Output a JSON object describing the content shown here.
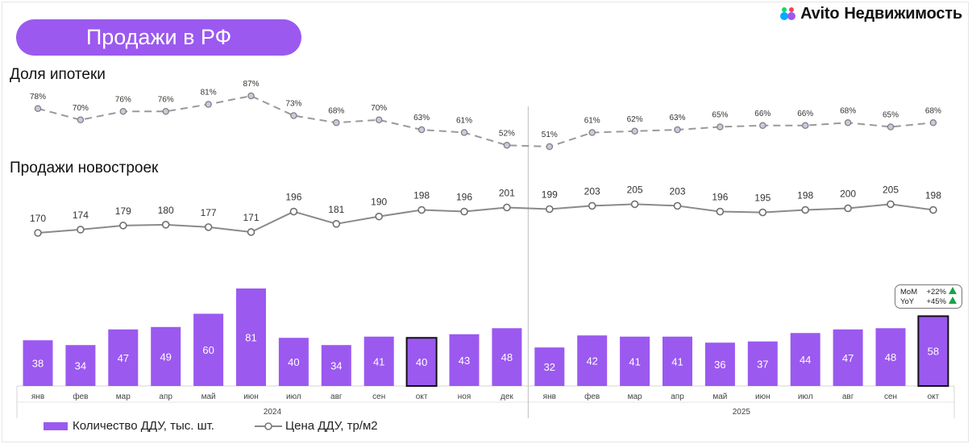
{
  "header": {
    "title": "Продажи в РФ",
    "brand_name": "Avito",
    "brand_sub": "Недвижимость"
  },
  "sections": {
    "mortgage": "Доля ипотеки",
    "sales": "Продажи новостроек"
  },
  "legend": {
    "bars": "Количество ДДУ, тыс. шт.",
    "line": "Цена ДДУ, тр/м2"
  },
  "badge": {
    "mom_label": "MoM",
    "mom_value": "+22%",
    "yoy_label": "YoY",
    "yoy_value": "+45%"
  },
  "colors": {
    "bar": "#9b59f0",
    "line": "#888888",
    "marker_fill": "#c7cbe0",
    "up": "#17a34a"
  },
  "chart_data": [
    {
      "type": "line",
      "title": "Доля ипотеки",
      "categories": [
        "янв",
        "фев",
        "мар",
        "апр",
        "май",
        "июн",
        "июл",
        "авг",
        "сен",
        "окт",
        "ноя",
        "дек",
        "янв",
        "фев",
        "мар",
        "апр",
        "май",
        "июн",
        "июл",
        "авг",
        "сен",
        "окт"
      ],
      "values": [
        78,
        70,
        76,
        76,
        81,
        87,
        73,
        68,
        70,
        63,
        61,
        52,
        51,
        61,
        62,
        63,
        65,
        66,
        66,
        68,
        65,
        68
      ],
      "value_suffix": "%",
      "style": "dashed"
    },
    {
      "type": "line",
      "title": "Цена ДДУ, тр/м2",
      "categories": [
        "янв",
        "фев",
        "мар",
        "апр",
        "май",
        "июн",
        "июл",
        "авг",
        "сен",
        "окт",
        "ноя",
        "дек",
        "янв",
        "фев",
        "мар",
        "апр",
        "май",
        "июн",
        "июл",
        "авг",
        "сен",
        "окт"
      ],
      "values": [
        170,
        174,
        179,
        180,
        177,
        171,
        196,
        181,
        190,
        198,
        196,
        201,
        199,
        203,
        205,
        203,
        196,
        195,
        198,
        200,
        205,
        198
      ]
    },
    {
      "type": "bar",
      "title": "Количество ДДУ, тыс. шт.",
      "categories": [
        "янв",
        "фев",
        "мар",
        "апр",
        "май",
        "июн",
        "июл",
        "авг",
        "сен",
        "окт",
        "ноя",
        "дек",
        "янв",
        "фев",
        "мар",
        "апр",
        "май",
        "июн",
        "июл",
        "авг",
        "сен",
        "окт"
      ],
      "values": [
        38,
        34,
        47,
        49,
        60,
        81,
        40,
        34,
        41,
        40,
        43,
        48,
        32,
        42,
        41,
        41,
        36,
        37,
        44,
        47,
        48,
        58
      ],
      "highlighted": [
        9,
        21
      ],
      "years": [
        {
          "label": "2024",
          "from": 0,
          "to": 11
        },
        {
          "label": "2025",
          "from": 12,
          "to": 21
        }
      ]
    }
  ]
}
